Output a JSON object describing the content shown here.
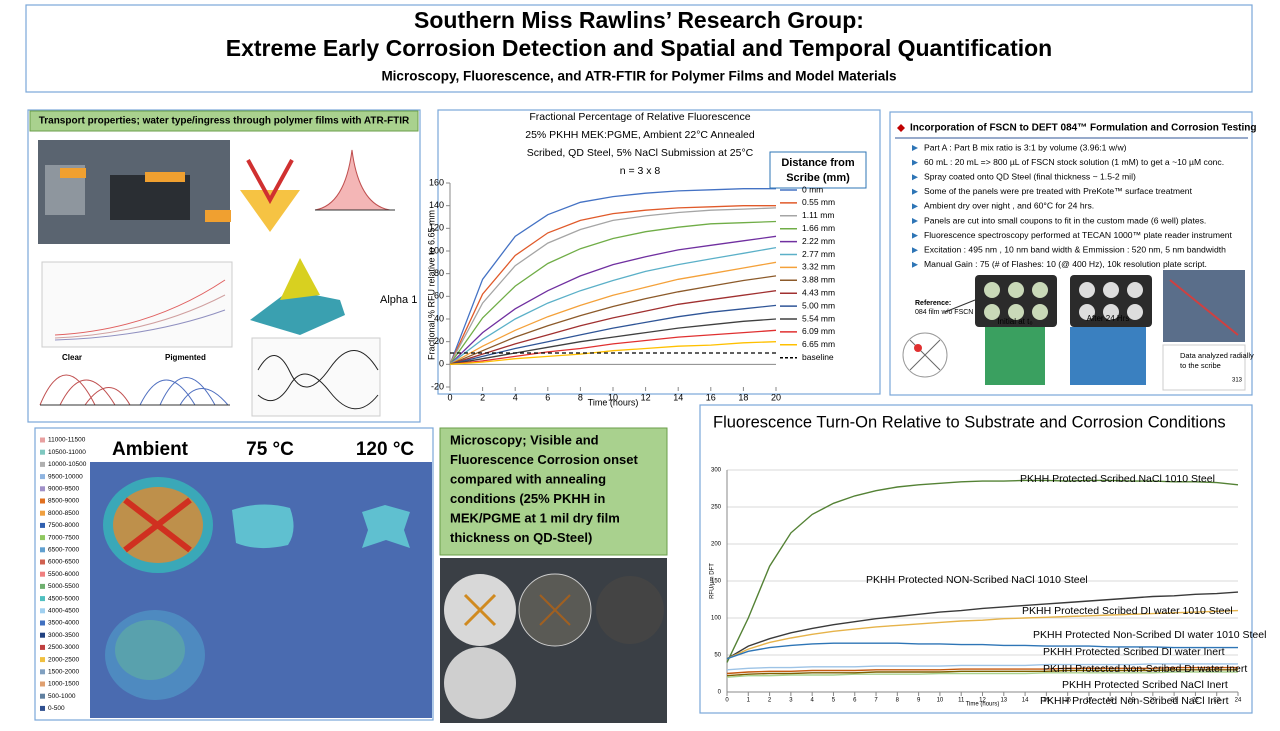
{
  "header": {
    "title_lines": [
      "Southern Miss Rawlins’ Research Group:",
      "Extreme Early Corrosion Detection and Spatial and Temporal Quantification"
    ],
    "subtitle": "Microscopy, Fluorescence, and ATR-FTIR for Polymer Films and Model Materials"
  },
  "transport_panel": {
    "heading": "Transport properties; water type/ingress through polymer films with ATR-FTIR",
    "labels": {
      "alpha": "Alpha 1",
      "clear": "Clear",
      "pigmented": "Pigmented"
    }
  },
  "incorporation_panel": {
    "heading": "Incorporation of FSCN to DEFT 084™ Formulation and Corrosion Testing",
    "bullets": [
      "Part A : Part B  mix ratio is 3:1 by volume (3.96:1  w/w)",
      "60 mL : 20 mL  => 800 µL of FSCN stock solution (1 mM) to get a ~10 µM conc.",
      "Spray coated onto QD Steel  (final thickness ~ 1.5-2 mil)",
      "Some of the panels were pre treated with PreKote™ surface treatment",
      "Ambient dry over night , and 60°C for 24 hrs.",
      "Panels are cut into small coupons to fit in the custom made (6 well)  plates.",
      "Fluorescence spectroscopy performed at TECAN 1000™ plate reader instrument",
      "Excitation : 495 nm , 10 nm band width & Emmission : 520 nm, 5 nm bandwidth",
      "Manual Gain : 75   (# of Flashes: 10 (@ 400 Hz), 10k resolution plate script."
    ],
    "image_labels": {
      "reference": "Reference:",
      "reference_note": "084 film w/o FSCN",
      "initial": "Initial at t₀",
      "after": "After 24 Hrs",
      "analysis": [
        "Data analyzed radially",
        "to the scribe"
      ],
      "slide_number": "313"
    }
  },
  "microscopy_panel": {
    "columns": [
      "Ambient",
      "75 °C",
      "120 °C"
    ],
    "legend": [
      {
        "label": "11000-11500",
        "color": "#e8a0a0"
      },
      {
        "label": "10500-11000",
        "color": "#7fc8c0"
      },
      {
        "label": "10000-10500",
        "color": "#b0b0b0"
      },
      {
        "label": "9500-10000",
        "color": "#8fb4e0"
      },
      {
        "label": "9000-9500",
        "color": "#a090c8"
      },
      {
        "label": "8500-9000",
        "color": "#e07020"
      },
      {
        "label": "8000-8500",
        "color": "#f0a040"
      },
      {
        "label": "7500-8000",
        "color": "#3060b0"
      },
      {
        "label": "7000-7500",
        "color": "#90c860"
      },
      {
        "label": "6500-7000",
        "color": "#60a0d0"
      },
      {
        "label": "6000-6500",
        "color": "#d06050"
      },
      {
        "label": "5500-6000",
        "color": "#f08080"
      },
      {
        "label": "5000-5500",
        "color": "#70b070"
      },
      {
        "label": "4500-5000",
        "color": "#50c0c0"
      },
      {
        "label": "4000-4500",
        "color": "#a0d0f0"
      },
      {
        "label": "3500-4000",
        "color": "#4070c0"
      },
      {
        "label": "3000-3500",
        "color": "#204080"
      },
      {
        "label": "2500-3000",
        "color": "#c04040"
      },
      {
        "label": "2000-2500",
        "color": "#f0c040"
      },
      {
        "label": "1500-2000",
        "color": "#80a0c0"
      },
      {
        "label": "1000-1500",
        "color": "#e0a070"
      },
      {
        "label": "500-1000",
        "color": "#6080a0"
      },
      {
        "label": "0-500",
        "color": "#305090"
      }
    ],
    "note_lines": [
      "Microscopy; Visible and",
      "Fluorescence Corrosion onset",
      "compared with annealing",
      "conditions (25% PKHH in",
      "MEK/PGME at 1 mil dry film",
      "thickness on QD-Steel)"
    ]
  },
  "chart_data": [
    {
      "type": "line",
      "title": [
        "Fractional Percentage of Relative Fluorescence",
        "25% PKHH MEK:PGME, Ambient 22°C Annealed",
        "Scribed, QD Steel, 5% NaCl Submission at 25°C",
        "n = 3 x 8"
      ],
      "xlabel": "Time (hours)",
      "ylabel": "Fractional % RFU relative to 6.65 mm",
      "legend_title": [
        "Distance from",
        "Scribe (mm)"
      ],
      "x": [
        0,
        2,
        4,
        6,
        8,
        10,
        12,
        14,
        16,
        18,
        20
      ],
      "xlim": [
        0,
        20
      ],
      "xticks": [
        0,
        2,
        4,
        6,
        8,
        10,
        12,
        14,
        16,
        18,
        20
      ],
      "ylim": [
        -20,
        160
      ],
      "yticks": [
        -20,
        0,
        20,
        40,
        60,
        80,
        100,
        120,
        140,
        160
      ],
      "grid": false,
      "series": [
        {
          "name": "0 mm",
          "color": "#4472c4",
          "values": [
            0,
            75,
            113,
            132,
            143,
            148,
            151,
            153,
            154,
            155,
            155
          ]
        },
        {
          "name": "0.55 mm",
          "color": "#e05a2a",
          "values": [
            0,
            62,
            96,
            116,
            127,
            133,
            136,
            138,
            139,
            140,
            140
          ]
        },
        {
          "name": "1.11 mm",
          "color": "#a5a5a5",
          "values": [
            0,
            54,
            87,
            107,
            119,
            127,
            131,
            134,
            136,
            137,
            138
          ]
        },
        {
          "name": "1.66 mm",
          "color": "#70ad47",
          "values": [
            0,
            41,
            69,
            89,
            102,
            111,
            117,
            121,
            124,
            125,
            126
          ]
        },
        {
          "name": "2.22 mm",
          "color": "#7030a0",
          "values": [
            0,
            28,
            49,
            65,
            78,
            88,
            95,
            101,
            105,
            109,
            113
          ]
        },
        {
          "name": "2.77 mm",
          "color": "#5bb0c8",
          "values": [
            0,
            22,
            40,
            54,
            65,
            74,
            82,
            88,
            93,
            98,
            103
          ]
        },
        {
          "name": "3.32 mm",
          "color": "#f4a13a",
          "values": [
            0,
            16,
            30,
            42,
            52,
            61,
            68,
            75,
            80,
            85,
            90
          ]
        },
        {
          "name": "3.88 mm",
          "color": "#8c5a2a",
          "values": [
            0,
            12,
            24,
            34,
            43,
            51,
            58,
            64,
            69,
            74,
            78
          ]
        },
        {
          "name": "4.43 mm",
          "color": "#a03030",
          "values": [
            0,
            9,
            18,
            26,
            34,
            41,
            47,
            53,
            57,
            61,
            65
          ]
        },
        {
          "name": "5.00 mm",
          "color": "#2f5597",
          "values": [
            0,
            7,
            14,
            20,
            26,
            32,
            37,
            42,
            46,
            49,
            52
          ]
        },
        {
          "name": "5.54 mm",
          "color": "#404040",
          "values": [
            0,
            5,
            10,
            15,
            20,
            24,
            28,
            32,
            35,
            38,
            40
          ]
        },
        {
          "name": "6.09 mm",
          "color": "#e03030",
          "values": [
            0,
            3,
            7,
            11,
            14,
            18,
            21,
            24,
            26,
            28,
            30
          ]
        },
        {
          "name": "6.65 mm",
          "color": "#ffc000",
          "values": [
            0,
            2,
            5,
            7,
            9,
            12,
            14,
            16,
            17,
            19,
            20
          ]
        },
        {
          "name": "baseline",
          "color": "#000000",
          "dash": true,
          "values": [
            10,
            10,
            10,
            10,
            10,
            10,
            10,
            10,
            10,
            10,
            10
          ]
        }
      ]
    },
    {
      "type": "line",
      "title": "Fluorescence Turn-On Relative to Substrate and Corrosion Conditions",
      "xlabel": "Time (hours)",
      "ylabel": "RFU/µm DFT",
      "x": [
        0,
        1,
        2,
        3,
        4,
        5,
        6,
        7,
        8,
        9,
        10,
        11,
        12,
        13,
        14,
        15,
        16,
        17,
        18,
        19,
        20,
        21,
        22,
        23,
        24
      ],
      "xlim": [
        0,
        24
      ],
      "xticks": [
        0,
        1,
        2,
        3,
        4,
        5,
        6,
        7,
        8,
        9,
        10,
        11,
        12,
        13,
        14,
        15,
        16,
        17,
        18,
        19,
        20,
        21,
        22,
        23,
        24
      ],
      "ylim": [
        0,
        300
      ],
      "yticks": [
        0,
        50,
        100,
        150,
        200,
        250,
        300
      ],
      "grid": true,
      "series": [
        {
          "name": "PKHH Protected Scribed NaCl 1010 Steel",
          "color": "#548235",
          "values": [
            40,
            100,
            170,
            215,
            240,
            255,
            265,
            272,
            277,
            280,
            282,
            284,
            285,
            285,
            286,
            286,
            285,
            286,
            286,
            285,
            285,
            284,
            284,
            283,
            280
          ]
        },
        {
          "name": "PKHH Protected NON-Scribed NaCl 1010 Steel",
          "color": "#3a3a3a",
          "values": [
            45,
            62,
            72,
            80,
            86,
            91,
            95,
            99,
            102,
            105,
            108,
            110,
            113,
            115,
            117,
            119,
            121,
            123,
            125,
            127,
            129,
            130,
            132,
            133,
            135
          ]
        },
        {
          "name": "PKHH Protected Scribed DI water 1010 Steel",
          "color": "#e6b34a",
          "values": [
            45,
            58,
            67,
            73,
            78,
            82,
            85,
            88,
            90,
            92,
            94,
            96,
            97,
            99,
            100,
            101,
            102,
            103,
            104,
            105,
            106,
            107,
            108,
            109,
            110
          ]
        },
        {
          "name": "PKHH Protected Non-Scribed DI water 1010 Steel",
          "color": "#2e75b6",
          "values": [
            45,
            55,
            60,
            63,
            65,
            66,
            66,
            66,
            66,
            65,
            65,
            64,
            64,
            63,
            63,
            62,
            62,
            62,
            61,
            61,
            61,
            60,
            60,
            60,
            60
          ]
        },
        {
          "name": "PKHH Protected Scribed DI water Inert",
          "color": "#9dc3e6",
          "values": [
            30,
            32,
            33,
            33,
            34,
            34,
            34,
            35,
            35,
            35,
            35,
            36,
            36,
            36,
            36,
            37,
            37,
            37,
            37,
            37,
            38,
            38,
            38,
            38,
            38
          ]
        },
        {
          "name": "PKHH Protected Non-Scribed DI water Inert",
          "color": "#c55a11",
          "values": [
            25,
            27,
            28,
            28,
            29,
            29,
            29,
            30,
            30,
            30,
            30,
            31,
            31,
            31,
            31,
            31,
            32,
            32,
            32,
            32,
            32,
            33,
            33,
            33,
            33
          ]
        },
        {
          "name": "PKHH Protected Scribed NaCl Inert",
          "color": "#7f6000",
          "values": [
            22,
            24,
            25,
            25,
            26,
            26,
            26,
            27,
            27,
            27,
            27,
            28,
            28,
            28,
            28,
            28,
            29,
            29,
            29,
            29,
            29,
            30,
            30,
            30,
            30
          ]
        },
        {
          "name": "PKHH Protected Non-Scribed NaCl Inert",
          "color": "#a9d18e",
          "values": [
            20,
            22,
            22,
            23,
            23,
            23,
            24,
            24,
            24,
            24,
            25,
            25,
            25,
            25,
            25,
            26,
            26,
            26,
            26,
            26,
            26,
            27,
            27,
            27,
            27
          ]
        }
      ]
    }
  ]
}
